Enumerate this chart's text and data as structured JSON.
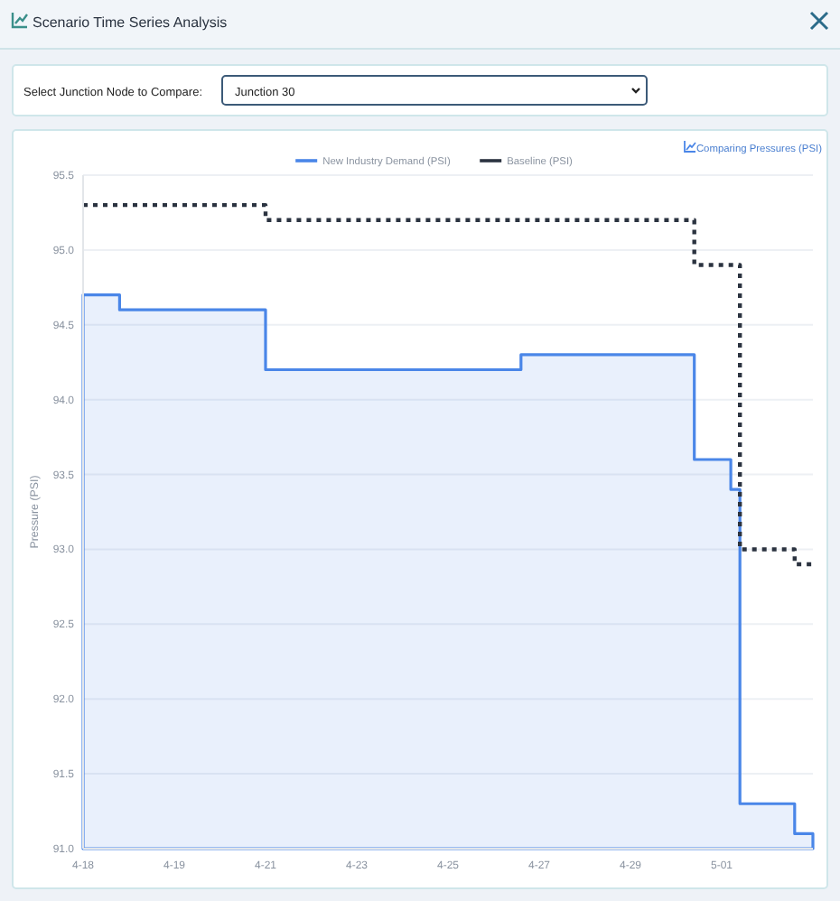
{
  "chart_data": {
    "type": "step",
    "title": "Scenario Time Series Analysis",
    "subtitle": "Comparing Pressures (PSI)",
    "ylabel": "Pressure (PSI)",
    "annotations": [
      "Select Junction Node to Compare:",
      "Junction 30"
    ],
    "categories": [
      "4-18",
      null,
      null,
      null,
      null,
      null,
      null,
      null,
      null,
      null,
      "4-19",
      null,
      null,
      null,
      null,
      null,
      null,
      null,
      null,
      null,
      "4-21",
      null,
      null,
      null,
      null,
      null,
      null,
      null,
      null,
      null,
      "4-23",
      null,
      null,
      null,
      null,
      null,
      null,
      null,
      null,
      null,
      "4-25",
      null,
      null,
      null,
      null,
      null,
      null,
      null,
      null,
      null,
      "4-27",
      null,
      null,
      null,
      null,
      null,
      null,
      null,
      null,
      null,
      "4-29",
      null,
      null,
      null,
      null,
      null,
      null,
      null,
      null,
      null,
      "5-01",
      null,
      null,
      null,
      null,
      null,
      null,
      null,
      null,
      null,
      null
    ],
    "ylim": [
      91,
      95.5
    ],
    "yticks": [
      {
        "value": 91,
        "label": "91.0"
      },
      {
        "value": 91.5,
        "label": "91.5"
      },
      {
        "value": 92,
        "label": "92.0"
      },
      {
        "value": 92.5,
        "label": "92.5"
      },
      {
        "value": 93,
        "label": "93.0"
      },
      {
        "value": 93.5,
        "label": "93.5"
      },
      {
        "value": 94,
        "label": "94.0"
      },
      {
        "value": 94.5,
        "label": "94.5"
      },
      {
        "value": 95,
        "label": "95.0"
      },
      {
        "value": 95.5,
        "label": "95.5"
      }
    ],
    "grid": "y",
    "legend": "top",
    "marker": "none",
    "series": [
      {
        "name": "New Industry Demand (PSI)",
        "type": "area",
        "color": "#4a86e8",
        "line_style": "solid",
        "values": [
          94.7,
          94.7,
          94.7,
          94.7,
          94.6,
          94.6,
          94.6,
          94.6,
          94.6,
          94.6,
          94.6,
          94.6,
          94.6,
          94.6,
          94.6,
          94.6,
          94.6,
          94.6,
          94.6,
          94.6,
          94.2,
          94.2,
          94.2,
          94.2,
          94.2,
          94.2,
          94.2,
          94.2,
          94.2,
          94.2,
          94.2,
          94.2,
          94.2,
          94.2,
          94.2,
          94.2,
          94.2,
          94.2,
          94.2,
          94.2,
          94.2,
          94.2,
          94.2,
          94.2,
          94.2,
          94.2,
          94.2,
          94.2,
          94.3,
          94.3,
          94.3,
          94.3,
          94.3,
          94.3,
          94.3,
          94.3,
          94.3,
          94.3,
          94.3,
          94.3,
          94.3,
          94.3,
          94.3,
          94.3,
          94.3,
          94.3,
          94.3,
          93.6,
          93.6,
          93.6,
          93.6,
          93.4,
          91.3,
          91.3,
          91.3,
          91.3,
          91.3,
          91.3,
          91.1,
          91.1,
          91.1
        ]
      },
      {
        "name": "Baseline (PSI)",
        "color": "#2b3340",
        "line_style": "dotted",
        "values": [
          95.3,
          95.3,
          95.3,
          95.3,
          95.3,
          95.3,
          95.3,
          95.3,
          95.3,
          95.3,
          95.3,
          95.3,
          95.3,
          95.3,
          95.3,
          95.3,
          95.3,
          95.3,
          95.3,
          95.3,
          95.2,
          95.2,
          95.2,
          95.2,
          95.2,
          95.2,
          95.2,
          95.2,
          95.2,
          95.2,
          95.2,
          95.2,
          95.2,
          95.2,
          95.2,
          95.2,
          95.2,
          95.2,
          95.2,
          95.2,
          95.2,
          95.2,
          95.2,
          95.2,
          95.2,
          95.2,
          95.2,
          95.2,
          95.2,
          95.2,
          95.2,
          95.2,
          95.2,
          95.2,
          95.2,
          95.2,
          95.2,
          95.2,
          95.2,
          95.2,
          95.2,
          95.2,
          95.2,
          95.2,
          95.2,
          95.2,
          95.2,
          94.9,
          94.9,
          94.9,
          94.9,
          94.9,
          93.0,
          93.0,
          93.0,
          93.0,
          93.0,
          93.0,
          92.9,
          92.9,
          92.9
        ]
      }
    ]
  }
}
